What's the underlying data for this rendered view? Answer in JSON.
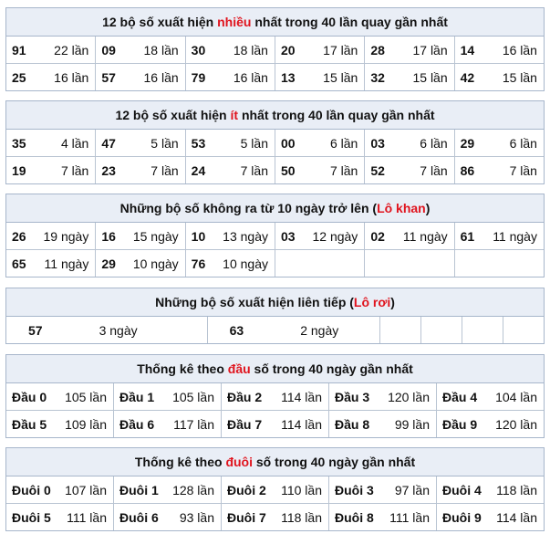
{
  "sections": [
    {
      "title": {
        "before": "12 bộ số xuất hiện ",
        "highlight": "nhiều",
        "after": " nhất trong 40 lần quay gần nhất"
      },
      "rows": [
        [
          {
            "key": "91",
            "count": "22 lần"
          },
          {
            "key": "09",
            "count": "18 lần"
          },
          {
            "key": "30",
            "count": "18 lần"
          },
          {
            "key": "20",
            "count": "17 lần"
          },
          {
            "key": "28",
            "count": "17 lần"
          },
          {
            "key": "14",
            "count": "16 lần"
          }
        ],
        [
          {
            "key": "25",
            "count": "16 lần"
          },
          {
            "key": "57",
            "count": "16 lần"
          },
          {
            "key": "79",
            "count": "16 lần"
          },
          {
            "key": "13",
            "count": "15 lần"
          },
          {
            "key": "32",
            "count": "15 lần"
          },
          {
            "key": "42",
            "count": "15 lần"
          }
        ]
      ]
    },
    {
      "title": {
        "before": "12 bộ số xuất hiện ",
        "highlight": "ít",
        "after": " nhất trong 40 lần quay gần nhất"
      },
      "rows": [
        [
          {
            "key": "35",
            "count": "4 lần"
          },
          {
            "key": "47",
            "count": "5 lần"
          },
          {
            "key": "53",
            "count": "5 lần"
          },
          {
            "key": "00",
            "count": "6 lần"
          },
          {
            "key": "03",
            "count": "6 lần"
          },
          {
            "key": "29",
            "count": "6 lần"
          }
        ],
        [
          {
            "key": "19",
            "count": "7 lần"
          },
          {
            "key": "23",
            "count": "7 lần"
          },
          {
            "key": "24",
            "count": "7 lần"
          },
          {
            "key": "50",
            "count": "7 lần"
          },
          {
            "key": "52",
            "count": "7 lần"
          },
          {
            "key": "86",
            "count": "7 lần"
          }
        ]
      ]
    },
    {
      "title": {
        "before": "Những bộ số không ra từ 10 ngày trở lên (",
        "highlight": "Lô khan",
        "after": ")"
      },
      "rows": [
        [
          {
            "key": "26",
            "count": "19 ngày"
          },
          {
            "key": "16",
            "count": "15 ngày"
          },
          {
            "key": "10",
            "count": "13 ngày"
          },
          {
            "key": "03",
            "count": "12 ngày"
          },
          {
            "key": "02",
            "count": "11 ngày"
          },
          {
            "key": "61",
            "count": "11 ngày"
          }
        ],
        [
          {
            "key": "65",
            "count": "11 ngày"
          },
          {
            "key": "29",
            "count": "10 ngày"
          },
          {
            "key": "76",
            "count": "10 ngày"
          }
        ]
      ]
    },
    {
      "title": {
        "before": "Những bộ số xuất hiện liên tiếp (",
        "highlight": "Lô rơi",
        "after": ")"
      },
      "rows": [
        [
          {
            "key": "57",
            "count": "3 ngày"
          },
          {
            "key": "63",
            "count": "2 ngày"
          }
        ]
      ]
    },
    {
      "title": {
        "before": "Thống kê theo ",
        "highlight": "đầu",
        "after": " số trong 40 ngày gần nhất"
      },
      "rows": [
        [
          {
            "key": "Đầu 0",
            "count": "105 lần"
          },
          {
            "key": "Đầu 1",
            "count": "105 lần"
          },
          {
            "key": "Đầu 2",
            "count": "114 lần"
          },
          {
            "key": "Đầu 3",
            "count": "120 lần"
          },
          {
            "key": "Đầu 4",
            "count": "104 lần"
          }
        ],
        [
          {
            "key": "Đầu 5",
            "count": "109 lần"
          },
          {
            "key": "Đầu 6",
            "count": "117 lần"
          },
          {
            "key": "Đầu 7",
            "count": "114 lần"
          },
          {
            "key": "Đầu 8",
            "count": "99 lần"
          },
          {
            "key": "Đầu 9",
            "count": "120 lần"
          }
        ]
      ]
    },
    {
      "title": {
        "before": "Thống kê theo ",
        "highlight": "đuôi",
        "after": " số trong 40 ngày gần nhất"
      },
      "rows": [
        [
          {
            "key": "Đuôi 0",
            "count": "107 lần"
          },
          {
            "key": "Đuôi 1",
            "count": "128 lần"
          },
          {
            "key": "Đuôi 2",
            "count": "110 lần"
          },
          {
            "key": "Đuôi 3",
            "count": "97 lần"
          },
          {
            "key": "Đuôi 4",
            "count": "118 lần"
          }
        ],
        [
          {
            "key": "Đuôi 5",
            "count": "111 lần"
          },
          {
            "key": "Đuôi 6",
            "count": "93 lần"
          },
          {
            "key": "Đuôi 7",
            "count": "118 lần"
          },
          {
            "key": "Đuôi 8",
            "count": "111 lần"
          },
          {
            "key": "Đuôi 9",
            "count": "114 lần"
          }
        ]
      ]
    }
  ]
}
